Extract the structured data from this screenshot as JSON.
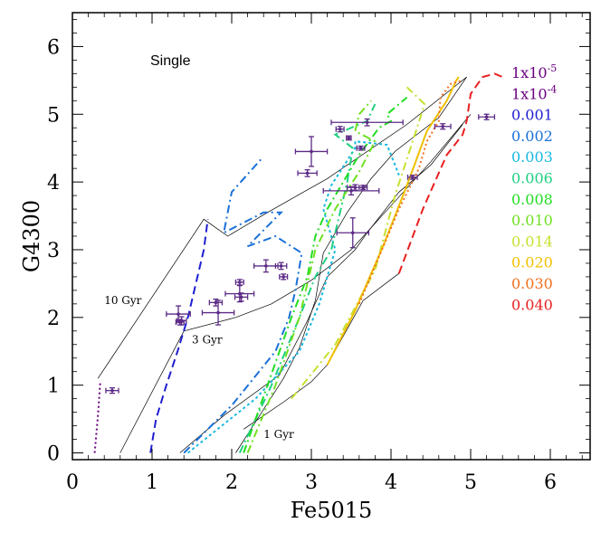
{
  "chart_data": {
    "type": "scatter",
    "title": "Single",
    "xlabel": "Fe5015",
    "ylabel": "G4300",
    "xlim": [
      0,
      6.5
    ],
    "ylim": [
      -0.1,
      6.5
    ],
    "xticks": [
      "0",
      "1",
      "2",
      "3",
      "4",
      "5",
      "6"
    ],
    "yticks": [
      "0",
      "1",
      "2",
      "3",
      "4",
      "5",
      "6"
    ],
    "age_labels": [
      {
        "text": "10 Gyr",
        "x": 0.4,
        "y": 2.2
      },
      {
        "text": "3 Gyr",
        "x": 1.5,
        "y": 1.62
      },
      {
        "text": "1 Gyr",
        "x": 2.4,
        "y": 0.22
      }
    ],
    "legend": {
      "placement": "right",
      "entries": [
        {
          "label": "1x10",
          "sup": "-5",
          "color": "#6a0080"
        },
        {
          "label": "1x10",
          "sup": "-4",
          "color": "#6a0080"
        },
        {
          "label": "0.001",
          "color": "#1f1fd0"
        },
        {
          "label": "0.002",
          "color": "#1a70d8"
        },
        {
          "label": "0.003",
          "color": "#18b8e0"
        },
        {
          "label": "0.006",
          "color": "#20d080"
        },
        {
          "label": "0.008",
          "color": "#22dd22"
        },
        {
          "label": "0.010",
          "color": "#70e020"
        },
        {
          "label": "0.014",
          "color": "#c8e030"
        },
        {
          "label": "0.020",
          "color": "#f0c000"
        },
        {
          "label": "0.030",
          "color": "#f07020"
        },
        {
          "label": "0.040",
          "color": "#e82020"
        }
      ]
    },
    "model_tracks": [
      {
        "metallicity": "1x10-5",
        "color": "#6a0080",
        "dash": "2,3",
        "x": [
          0.28,
          0.32,
          0.35
        ],
        "y": [
          0.0,
          0.55,
          1.05
        ]
      },
      {
        "metallicity": "0.001",
        "color": "#1f1fd0",
        "dash": "9,5",
        "x": [
          0.98,
          1.05,
          1.18,
          1.32,
          1.45,
          1.55,
          1.65,
          1.7
        ],
        "y": [
          0.0,
          0.5,
          1.0,
          1.5,
          2.0,
          2.5,
          3.0,
          3.45
        ]
      },
      {
        "metallicity": "0.002",
        "color": "#1a70d8",
        "dash": "9,4,2,4",
        "x": [
          1.4,
          2.0,
          2.55,
          2.72,
          2.8,
          2.88,
          2.55,
          2.2,
          2.62,
          2.4,
          1.9,
          2.0,
          2.38
        ],
        "y": [
          0.0,
          0.7,
          1.5,
          2.0,
          2.4,
          2.95,
          3.2,
          3.05,
          3.55,
          3.55,
          3.25,
          3.85,
          4.35
        ]
      },
      {
        "metallicity": "0.003",
        "color": "#18b8e0",
        "dash": "3,3",
        "x": [
          1.45,
          2.3,
          2.85,
          3.1,
          3.3,
          3.15,
          3.25,
          3.55,
          3.55,
          3.95,
          4.1
        ],
        "y": [
          0.0,
          0.8,
          1.5,
          2.2,
          3.0,
          3.6,
          3.95,
          4.5,
          4.6,
          4.55,
          4.1
        ]
      },
      {
        "metallicity": "0.006",
        "color": "#20d080",
        "dash": "9,4,2,4",
        "x": [
          2.1,
          2.5,
          2.85,
          3.05,
          3.25,
          3.35,
          3.45,
          3.52,
          3.3,
          3.7,
          3.8
        ],
        "y": [
          0.0,
          1.0,
          2.0,
          2.6,
          3.0,
          3.5,
          4.0,
          4.5,
          4.7,
          4.9,
          5.15
        ]
      },
      {
        "metallicity": "0.008",
        "color": "#22dd22",
        "dash": "9,4,2,4",
        "x": [
          2.15,
          2.45,
          2.75,
          2.95,
          3.05,
          3.2,
          3.4,
          3.6,
          3.85,
          4.0,
          3.95,
          4.2
        ],
        "y": [
          0.0,
          1.0,
          2.0,
          2.6,
          3.2,
          3.6,
          4.0,
          4.4,
          4.8,
          4.9,
          5.0,
          5.25
        ]
      },
      {
        "metallicity": "0.010",
        "color": "#70e020",
        "dash": "9,4,2,4",
        "x": [
          2.2,
          2.55,
          2.85,
          3.05,
          3.3,
          3.6,
          3.8,
          3.55,
          3.6,
          3.75
        ],
        "y": [
          0.0,
          1.0,
          2.0,
          3.0,
          3.6,
          4.15,
          4.6,
          4.75,
          5.0,
          5.2
        ]
      },
      {
        "metallicity": "0.014",
        "color": "#c8e030",
        "dash": "9,4,2,4",
        "x": [
          2.75,
          3.3,
          3.8,
          4.05,
          4.3,
          4.42,
          4.2
        ],
        "y": [
          0.8,
          1.6,
          2.7,
          3.8,
          4.7,
          5.15,
          5.4
        ]
      },
      {
        "metallicity": "0.020",
        "color": "#f0c000",
        "dash": "",
        "x": [
          3.2,
          3.55,
          3.9,
          4.2,
          4.45,
          4.7,
          4.82,
          4.85
        ],
        "y": [
          1.3,
          2.1,
          3.05,
          3.95,
          4.75,
          5.2,
          5.5,
          5.55
        ]
      },
      {
        "metallicity": "0.030",
        "color": "#f07020",
        "dash": "2,3",
        "x": [
          3.6,
          3.85,
          4.1,
          4.35,
          4.45,
          4.6,
          4.62,
          4.75,
          4.9
        ],
        "y": [
          2.2,
          2.9,
          3.6,
          4.2,
          4.6,
          4.9,
          5.25,
          5.45,
          5.5
        ]
      },
      {
        "metallicity": "0.040",
        "color": "#e82020",
        "dash": "9,5",
        "x": [
          4.1,
          4.4,
          4.7,
          4.9,
          4.95,
          5.0,
          5.15,
          5.3,
          5.4
        ],
        "y": [
          2.65,
          3.6,
          4.4,
          4.7,
          4.9,
          5.3,
          5.55,
          5.6,
          5.55
        ]
      }
    ],
    "isochrones": [
      {
        "age": "10 Gyr",
        "x": [
          0.32,
          1.65,
          1.95,
          2.45,
          2.9,
          3.2,
          4.2,
          4.95
        ],
        "y": [
          1.1,
          3.45,
          3.2,
          3.55,
          3.85,
          4.05,
          4.85,
          5.55
        ]
      },
      {
        "age": "3 Gyr",
        "x": [
          0.6,
          1.4,
          2.05,
          2.5,
          3.0,
          3.5,
          4.0,
          4.5,
          5.0
        ],
        "y": [
          0.0,
          1.8,
          2.0,
          2.2,
          2.55,
          3.0,
          3.65,
          4.3,
          5.0
        ]
      },
      {
        "age": "1 Gyr",
        "x": [
          2.15,
          2.65,
          3.0,
          3.2,
          3.65,
          4.1
        ],
        "y": [
          0.35,
          0.75,
          1.05,
          1.3,
          2.25,
          2.65
        ]
      },
      {
        "age": "track-a",
        "x": [
          1.35,
          1.9,
          2.6,
          2.95,
          3.2,
          3.55,
          3.7,
          3.9,
          4.1,
          4.5,
          4.9
        ],
        "y": [
          0.0,
          0.55,
          1.15,
          1.95,
          2.6,
          3.0,
          3.25,
          3.55,
          3.85,
          4.25,
          4.85
        ]
      },
      {
        "age": "track-b",
        "x": [
          2.05,
          2.35,
          2.65,
          2.85,
          3.05,
          3.15,
          3.45,
          3.75,
          4.05,
          4.6,
          4.95
        ],
        "y": [
          0.0,
          0.55,
          1.1,
          1.55,
          2.25,
          2.95,
          3.55,
          4.05,
          4.45,
          4.95,
          5.55
        ]
      }
    ],
    "observations": [
      {
        "x": 0.5,
        "y": 0.92,
        "xerr": 0.08,
        "yerr": 0.04
      },
      {
        "x": 1.33,
        "y": 2.05,
        "xerr": 0.15,
        "yerr": 0.12
      },
      {
        "x": 1.37,
        "y": 1.95,
        "xerr": 0.06,
        "yerr": 0.06
      },
      {
        "x": 1.35,
        "y": 1.93,
        "xerr": 0.05,
        "yerr": 0.04
      },
      {
        "x": 1.83,
        "y": 2.07,
        "xerr": 0.2,
        "yerr": 0.18
      },
      {
        "x": 1.8,
        "y": 2.22,
        "xerr": 0.08,
        "yerr": 0.05
      },
      {
        "x": 2.1,
        "y": 2.35,
        "xerr": 0.18,
        "yerr": 0.12
      },
      {
        "x": 2.12,
        "y": 2.3,
        "xerr": 0.08,
        "yerr": 0.06
      },
      {
        "x": 2.1,
        "y": 2.52,
        "xerr": 0.05,
        "yerr": 0.04
      },
      {
        "x": 2.43,
        "y": 2.76,
        "xerr": 0.15,
        "yerr": 0.09
      },
      {
        "x": 2.62,
        "y": 2.76,
        "xerr": 0.07,
        "yerr": 0.05
      },
      {
        "x": 2.65,
        "y": 2.6,
        "xerr": 0.05,
        "yerr": 0.04
      },
      {
        "x": 3.0,
        "y": 4.45,
        "xerr": 0.2,
        "yerr": 0.22
      },
      {
        "x": 2.95,
        "y": 4.13,
        "xerr": 0.12,
        "yerr": 0.05
      },
      {
        "x": 3.36,
        "y": 4.78,
        "xerr": 0.05,
        "yerr": 0.04
      },
      {
        "x": 3.47,
        "y": 4.65,
        "xerr": 0.03,
        "yerr": 0.03
      },
      {
        "x": 3.7,
        "y": 4.88,
        "xerr": 0.45,
        "yerr": 0.05
      },
      {
        "x": 3.5,
        "y": 3.87,
        "xerr": 0.35,
        "yerr": 0.06
      },
      {
        "x": 3.55,
        "y": 3.92,
        "xerr": 0.1,
        "yerr": 0.04
      },
      {
        "x": 3.65,
        "y": 3.92,
        "xerr": 0.05,
        "yerr": 0.03
      },
      {
        "x": 3.62,
        "y": 4.5,
        "xerr": 0.05,
        "yerr": 0.03
      },
      {
        "x": 3.52,
        "y": 3.25,
        "xerr": 0.2,
        "yerr": 0.22
      },
      {
        "x": 4.27,
        "y": 4.07,
        "xerr": 0.06,
        "yerr": 0.03
      },
      {
        "x": 4.65,
        "y": 4.82,
        "xerr": 0.1,
        "yerr": 0.04
      },
      {
        "x": 5.2,
        "y": 4.96,
        "xerr": 0.1,
        "yerr": 0.04
      }
    ]
  }
}
